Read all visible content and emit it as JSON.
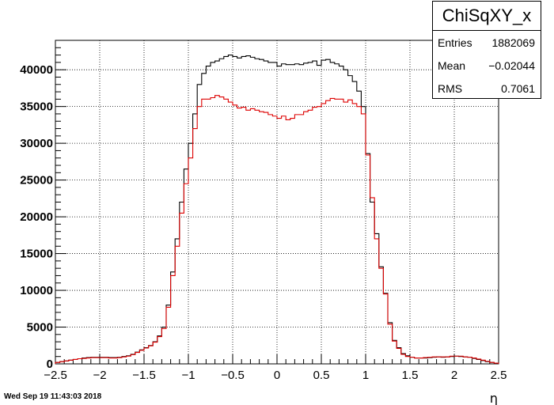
{
  "stats": {
    "title": "ChiSqXY_x",
    "rows": [
      {
        "label": "Entries",
        "value": "1882069"
      },
      {
        "label": "Mean",
        "value": "−0.02044"
      },
      {
        "label": "RMS",
        "value": "0.7061"
      }
    ]
  },
  "footer": {
    "date": "Wed Sep 19 11:43:03 2018"
  },
  "chart_data": {
    "type": "line",
    "style": "step-histogram",
    "xlabel": "η",
    "ylabel": "",
    "xlim": [
      -2.5,
      2.5
    ],
    "ylim": [
      0,
      44000
    ],
    "grid": true,
    "x_ticks": [
      -2.5,
      -2,
      -1.5,
      -1,
      -0.5,
      0,
      0.5,
      1,
      1.5,
      2,
      2.5
    ],
    "x_tick_labels": [
      "−2.5",
      "−2",
      "−1.5",
      "−1",
      "−0.5",
      "0",
      "0.5",
      "1",
      "1.5",
      "2",
      "2.5"
    ],
    "y_ticks": [
      0,
      5000,
      10000,
      15000,
      20000,
      25000,
      30000,
      35000,
      40000
    ],
    "y_tick_labels": [
      "0",
      "5000",
      "10000",
      "15000",
      "20000",
      "25000",
      "30000",
      "35000",
      "40000"
    ],
    "bin_edges": {
      "start": -2.5,
      "width": 0.05,
      "count": 100
    },
    "series": [
      {
        "color": "#000000",
        "values": [
          200,
          300,
          400,
          500,
          600,
          700,
          800,
          850,
          900,
          900,
          900,
          900,
          850,
          850,
          900,
          1000,
          1100,
          1300,
          1600,
          1900,
          2200,
          2500,
          3000,
          3800,
          5000,
          8000,
          12500,
          17000,
          22000,
          26500,
          30000,
          34000,
          38000,
          39500,
          40500,
          41000,
          41200,
          41500,
          41800,
          42000,
          41800,
          41600,
          41800,
          41900,
          41700,
          41500,
          41400,
          41200,
          41000,
          41000,
          40500,
          40800,
          40700,
          40700,
          40800,
          40700,
          40900,
          41000,
          41200,
          40600,
          41300,
          41400,
          41000,
          40800,
          40500,
          40000,
          39200,
          38400,
          37100,
          35000,
          28600,
          22000,
          17700,
          13200,
          9600,
          5600,
          3200,
          2200,
          1400,
          1100,
          900,
          800,
          800,
          800,
          850,
          900,
          950,
          900,
          950,
          1000,
          1050,
          1000,
          950,
          900,
          750,
          600,
          450,
          300,
          200,
          100
        ]
      },
      {
        "color": "#dd0000",
        "values": [
          200,
          300,
          400,
          500,
          600,
          700,
          750,
          800,
          850,
          850,
          850,
          850,
          800,
          800,
          850,
          950,
          1050,
          1250,
          1550,
          1850,
          2150,
          2450,
          2950,
          3700,
          4800,
          7700,
          12000,
          16000,
          20500,
          24500,
          28000,
          32000,
          35000,
          36000,
          36000,
          36200,
          36500,
          36300,
          36000,
          35600,
          35200,
          34800,
          34900,
          34500,
          34700,
          34500,
          34300,
          34200,
          33900,
          33700,
          33400,
          33700,
          33200,
          33400,
          33900,
          33900,
          34300,
          34500,
          34900,
          35000,
          35400,
          35800,
          36100,
          36000,
          36000,
          35600,
          35900,
          35400,
          35000,
          34000,
          28400,
          22600,
          17000,
          13000,
          9500,
          5400,
          3100,
          2100,
          1300,
          1000,
          900,
          800,
          800,
          850,
          900,
          950,
          950,
          950,
          950,
          1050,
          1050,
          1050,
          950,
          900,
          800,
          650,
          500,
          350,
          200,
          100
        ]
      }
    ]
  }
}
